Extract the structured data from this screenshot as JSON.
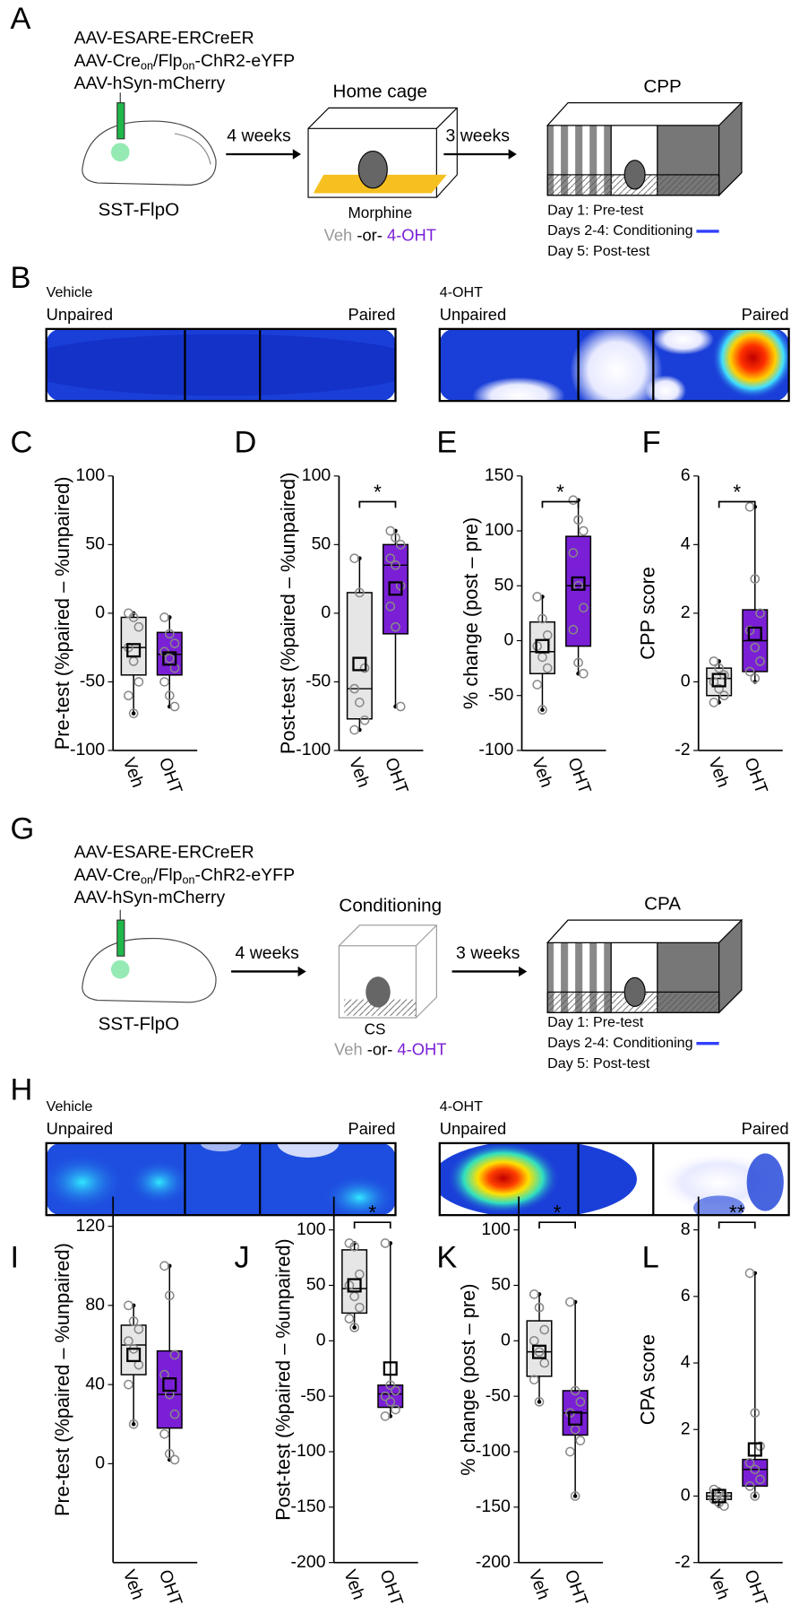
{
  "panel_labels": [
    "A",
    "B",
    "C",
    "D",
    "E",
    "F",
    "G",
    "H",
    "I",
    "J",
    "K",
    "L"
  ],
  "diagram_A": {
    "viruses": [
      [
        "AAV-ESARE-ERCreER"
      ],
      [
        "AAV-Cre",
        "on",
        "/Flp",
        "on",
        "-ChR2-eYFP"
      ],
      [
        "AAV-hSyn-mCherry"
      ]
    ],
    "mouse_line": "SST-FlpO",
    "arrow1": "4 weeks",
    "stage1": "Home cage",
    "drug": "Morphine",
    "veh": "Veh",
    "or": "-or-",
    "oht": "4-OHT",
    "arrow2": "3 weeks",
    "stage2": "CPP",
    "schedule": [
      "Day 1: Pre-test",
      "Days 2-4: Conditioning",
      "Day 5: Post-test"
    ]
  },
  "heatmaps_B": [
    {
      "group": "Vehicle",
      "left": "Unpaired",
      "right": "Paired"
    },
    {
      "group": "4-OHT",
      "left": "Unpaired",
      "right": "Paired"
    }
  ],
  "diagram_G": {
    "viruses": [
      [
        "AAV-ESARE-ERCreER"
      ],
      [
        "AAV-Cre",
        "on",
        "/Flp",
        "on",
        "-ChR2-eYFP"
      ],
      [
        "AAV-hSyn-mCherry"
      ]
    ],
    "mouse_line": "SST-FlpO",
    "arrow1": "4 weeks",
    "stage1": "Conditioning",
    "stimulus": "CS",
    "veh": "Veh",
    "or": "-or-",
    "oht": "4-OHT",
    "arrow2": "3 weeks",
    "stage2": "CPA",
    "schedule": [
      "Day 1: Pre-test",
      "Days 2-4: Conditioning",
      "Day 5: Post-test"
    ]
  },
  "heatmaps_H": [
    {
      "group": "Vehicle",
      "left": "Unpaired",
      "right": "Paired"
    },
    {
      "group": "4-OHT",
      "left": "Unpaired",
      "right": "Paired"
    }
  ],
  "chart_data": [
    {
      "type": "box",
      "ylabel": "Pre-test (%paired – %unpaired)",
      "ylim": [
        -100,
        100
      ],
      "yticks": [
        -100,
        -50,
        0,
        50,
        100
      ],
      "categories": [
        "Veh",
        "OHT"
      ],
      "boxes": [
        {
          "color": "#e6e6e6",
          "min": -73,
          "q1": -45,
          "median": -25,
          "q3": -3,
          "max": 0,
          "mean": -27,
          "points": [
            0,
            -3,
            -10,
            -25,
            -35,
            -50,
            -60,
            -73
          ]
        },
        {
          "color": "#7a1fd6",
          "min": -68,
          "q1": -45,
          "median": -30,
          "q3": -14,
          "max": -3,
          "mean": -33,
          "points": [
            -3,
            -15,
            -22,
            -28,
            -33,
            -40,
            -50,
            -60,
            -68
          ]
        }
      ]
    },
    {
      "type": "box",
      "ylabel": "Post-test (%paired – %unpaired)",
      "ylim": [
        -100,
        100
      ],
      "yticks": [
        -100,
        -50,
        0,
        50,
        100
      ],
      "categories": [
        "Veh",
        "OHT"
      ],
      "significance": "*",
      "boxes": [
        {
          "color": "#e6e6e6",
          "min": -85,
          "q1": -77,
          "median": -55,
          "q3": 15,
          "max": 40,
          "mean": -37,
          "points": [
            40,
            15,
            -40,
            -55,
            -65,
            -78,
            -85
          ]
        },
        {
          "color": "#7a1fd6",
          "min": -68,
          "q1": -15,
          "median": 35,
          "q3": 50,
          "max": 60,
          "mean": 18,
          "points": [
            60,
            55,
            50,
            40,
            35,
            20,
            5,
            -10,
            -68
          ]
        }
      ]
    },
    {
      "type": "box",
      "ylabel": "% change (post – pre)",
      "ylim": [
        -100,
        150
      ],
      "yticks": [
        -100,
        -50,
        0,
        50,
        100,
        150
      ],
      "categories": [
        "Veh",
        "OHT"
      ],
      "significance": "*",
      "boxes": [
        {
          "color": "#e6e6e6",
          "min": -63,
          "q1": -30,
          "median": -10,
          "q3": 17,
          "max": 40,
          "mean": -5,
          "points": [
            40,
            20,
            5,
            -5,
            -15,
            -25,
            -40,
            -63
          ]
        },
        {
          "color": "#7a1fd6",
          "min": -30,
          "q1": -5,
          "median": 50,
          "q3": 95,
          "max": 128,
          "mean": 52,
          "points": [
            128,
            110,
            100,
            80,
            50,
            30,
            10,
            -20,
            -30
          ]
        }
      ]
    },
    {
      "type": "box",
      "ylabel": "CPP score",
      "ylim": [
        -2,
        6
      ],
      "yticks": [
        -2,
        0,
        2,
        4,
        6
      ],
      "categories": [
        "Veh",
        "OHT"
      ],
      "significance": "*",
      "boxes": [
        {
          "color": "#e6e6e6",
          "min": -0.6,
          "q1": -0.4,
          "median": 0.1,
          "q3": 0.4,
          "max": 0.6,
          "mean": 0.05,
          "points": [
            0.6,
            0.4,
            0.2,
            0,
            -0.2,
            -0.4,
            -0.6
          ]
        },
        {
          "color": "#7a1fd6",
          "min": 0,
          "q1": 0.3,
          "median": 1.2,
          "q3": 2.1,
          "max": 5.1,
          "mean": 1.4,
          "points": [
            5.1,
            3.0,
            2.0,
            1.5,
            1.0,
            0.6,
            0.3,
            0.1
          ]
        }
      ]
    },
    {
      "type": "box",
      "ylabel": "Pre-test (%paired – %unpaired)",
      "ylim": [
        -50,
        135
      ],
      "yticks": [
        0,
        40,
        80,
        120
      ],
      "categories": [
        "Veh",
        "OHT"
      ],
      "boxes": [
        {
          "color": "#e6e6e6",
          "min": 20,
          "q1": 45,
          "median": 60,
          "q3": 70,
          "max": 80,
          "mean": 55,
          "points": [
            80,
            72,
            68,
            62,
            58,
            50,
            40,
            20
          ]
        },
        {
          "color": "#7a1fd6",
          "min": 2,
          "q1": 18,
          "median": 35,
          "q3": 57,
          "max": 100,
          "mean": 40,
          "points": [
            100,
            85,
            55,
            45,
            35,
            25,
            15,
            5,
            2
          ]
        }
      ]
    },
    {
      "type": "box",
      "ylabel": "Post-test (%paired – %unpaired)",
      "ylim": [
        -200,
        130
      ],
      "yticks": [
        -200,
        -150,
        -100,
        -50,
        0,
        50,
        100
      ],
      "categories": [
        "Veh",
        "OHT"
      ],
      "significance": "*",
      "boxes": [
        {
          "color": "#e6e6e6",
          "min": 12,
          "q1": 25,
          "median": 47,
          "q3": 82,
          "max": 88,
          "mean": 50,
          "points": [
            88,
            85,
            60,
            50,
            40,
            30,
            20,
            12
          ]
        },
        {
          "color": "#7a1fd6",
          "min": -68,
          "q1": -60,
          "median": -48,
          "q3": -40,
          "max": 88,
          "mean": -25,
          "points": [
            88,
            -40,
            -45,
            -50,
            -55,
            -62,
            -68
          ]
        }
      ]
    },
    {
      "type": "box",
      "ylabel": "% change (post – pre)",
      "ylim": [
        -200,
        130
      ],
      "yticks": [
        -200,
        -150,
        -100,
        -50,
        0,
        50,
        100
      ],
      "categories": [
        "Veh",
        "OHT"
      ],
      "significance": "*",
      "boxes": [
        {
          "color": "#e6e6e6",
          "min": -55,
          "q1": -32,
          "median": -10,
          "q3": 18,
          "max": 42,
          "mean": -10,
          "points": [
            42,
            30,
            10,
            0,
            -10,
            -20,
            -35,
            -55
          ]
        },
        {
          "color": "#7a1fd6",
          "min": -140,
          "q1": -85,
          "median": -65,
          "q3": -45,
          "max": 35,
          "mean": -70,
          "points": [
            35,
            -45,
            -55,
            -65,
            -80,
            -90,
            -100,
            -140
          ]
        }
      ]
    },
    {
      "type": "box",
      "ylabel": "CPA score",
      "ylim": [
        -2,
        9
      ],
      "yticks": [
        -2,
        0,
        2,
        4,
        6,
        8
      ],
      "categories": [
        "Veh",
        "OHT"
      ],
      "significance": "**",
      "boxes": [
        {
          "color": "#e6e6e6",
          "min": -0.3,
          "q1": -0.1,
          "median": 0,
          "q3": 0.1,
          "max": 0.2,
          "mean": 0,
          "points": [
            0.2,
            0.1,
            0,
            -0.1,
            -0.2,
            -0.3
          ]
        },
        {
          "color": "#7a1fd6",
          "min": 0,
          "q1": 0.3,
          "median": 0.8,
          "q3": 1.1,
          "max": 6.7,
          "mean": 1.4,
          "points": [
            6.7,
            2.5,
            1.5,
            1.0,
            0.8,
            0.5,
            0.3,
            0
          ]
        }
      ]
    }
  ]
}
